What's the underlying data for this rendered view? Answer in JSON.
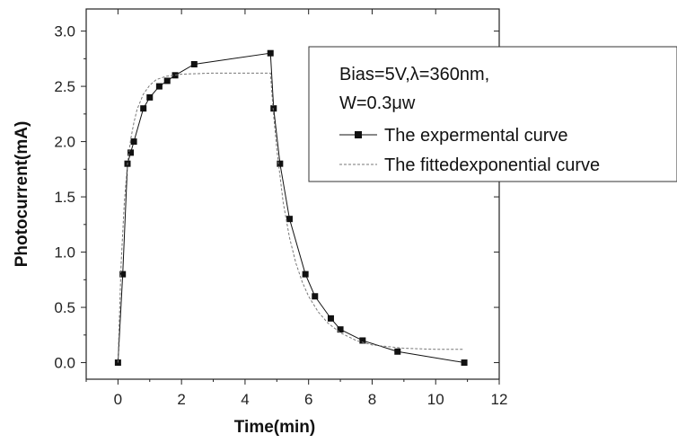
{
  "chart_data": {
    "type": "line",
    "xlabel": "Time(min)",
    "ylabel": "Photocurrent(mA)",
    "xlim": [
      -1,
      12
    ],
    "ylim": [
      -0.15,
      3.2
    ],
    "x_ticks": [
      0,
      2,
      4,
      6,
      8,
      10,
      12
    ],
    "y_ticks": [
      0.0,
      0.5,
      1.0,
      1.5,
      2.0,
      2.5,
      3.0
    ],
    "grid": false,
    "legend": {
      "placement": "top-right",
      "header_lines": [
        "Bias=5V,λ=360nm,",
        "W=0.3μw"
      ]
    },
    "series": [
      {
        "name": "The expermental curve",
        "style": "line-with-square-markers",
        "color": "#111111",
        "points": [
          [
            0.0,
            0.0
          ],
          [
            0.15,
            0.8
          ],
          [
            0.3,
            1.8
          ],
          [
            0.4,
            1.9
          ],
          [
            0.5,
            2.0
          ],
          [
            0.8,
            2.3
          ],
          [
            1.0,
            2.4
          ],
          [
            1.3,
            2.5
          ],
          [
            1.55,
            2.55
          ],
          [
            1.8,
            2.6
          ],
          [
            2.4,
            2.7
          ],
          [
            4.8,
            2.8
          ],
          [
            4.9,
            2.3
          ],
          [
            5.1,
            1.8
          ],
          [
            5.4,
            1.3
          ],
          [
            5.9,
            0.8
          ],
          [
            6.2,
            0.6
          ],
          [
            6.7,
            0.4
          ],
          [
            7.0,
            0.3
          ],
          [
            7.7,
            0.2
          ],
          [
            8.8,
            0.1
          ],
          [
            10.9,
            0.0
          ]
        ]
      },
      {
        "name": "The fittedexponential curve",
        "style": "dashed",
        "color": "#777777",
        "points": [
          [
            0.0,
            0.0
          ],
          [
            0.1,
            0.9
          ],
          [
            0.2,
            1.45
          ],
          [
            0.3,
            1.8
          ],
          [
            0.4,
            2.02
          ],
          [
            0.5,
            2.17
          ],
          [
            0.6,
            2.29
          ],
          [
            0.8,
            2.43
          ],
          [
            1.0,
            2.51
          ],
          [
            1.2,
            2.56
          ],
          [
            1.5,
            2.59
          ],
          [
            2.0,
            2.61
          ],
          [
            3.0,
            2.62
          ],
          [
            4.8,
            2.62
          ],
          [
            4.85,
            2.42
          ],
          [
            4.9,
            2.24
          ],
          [
            5.0,
            1.93
          ],
          [
            5.2,
            1.45
          ],
          [
            5.4,
            1.13
          ],
          [
            5.6,
            0.9
          ],
          [
            5.8,
            0.73
          ],
          [
            6.0,
            0.6
          ],
          [
            6.3,
            0.46
          ],
          [
            6.6,
            0.36
          ],
          [
            7.0,
            0.27
          ],
          [
            7.5,
            0.2
          ],
          [
            8.0,
            0.16
          ],
          [
            9.0,
            0.13
          ],
          [
            10.0,
            0.12
          ],
          [
            10.9,
            0.12
          ]
        ]
      }
    ]
  }
}
